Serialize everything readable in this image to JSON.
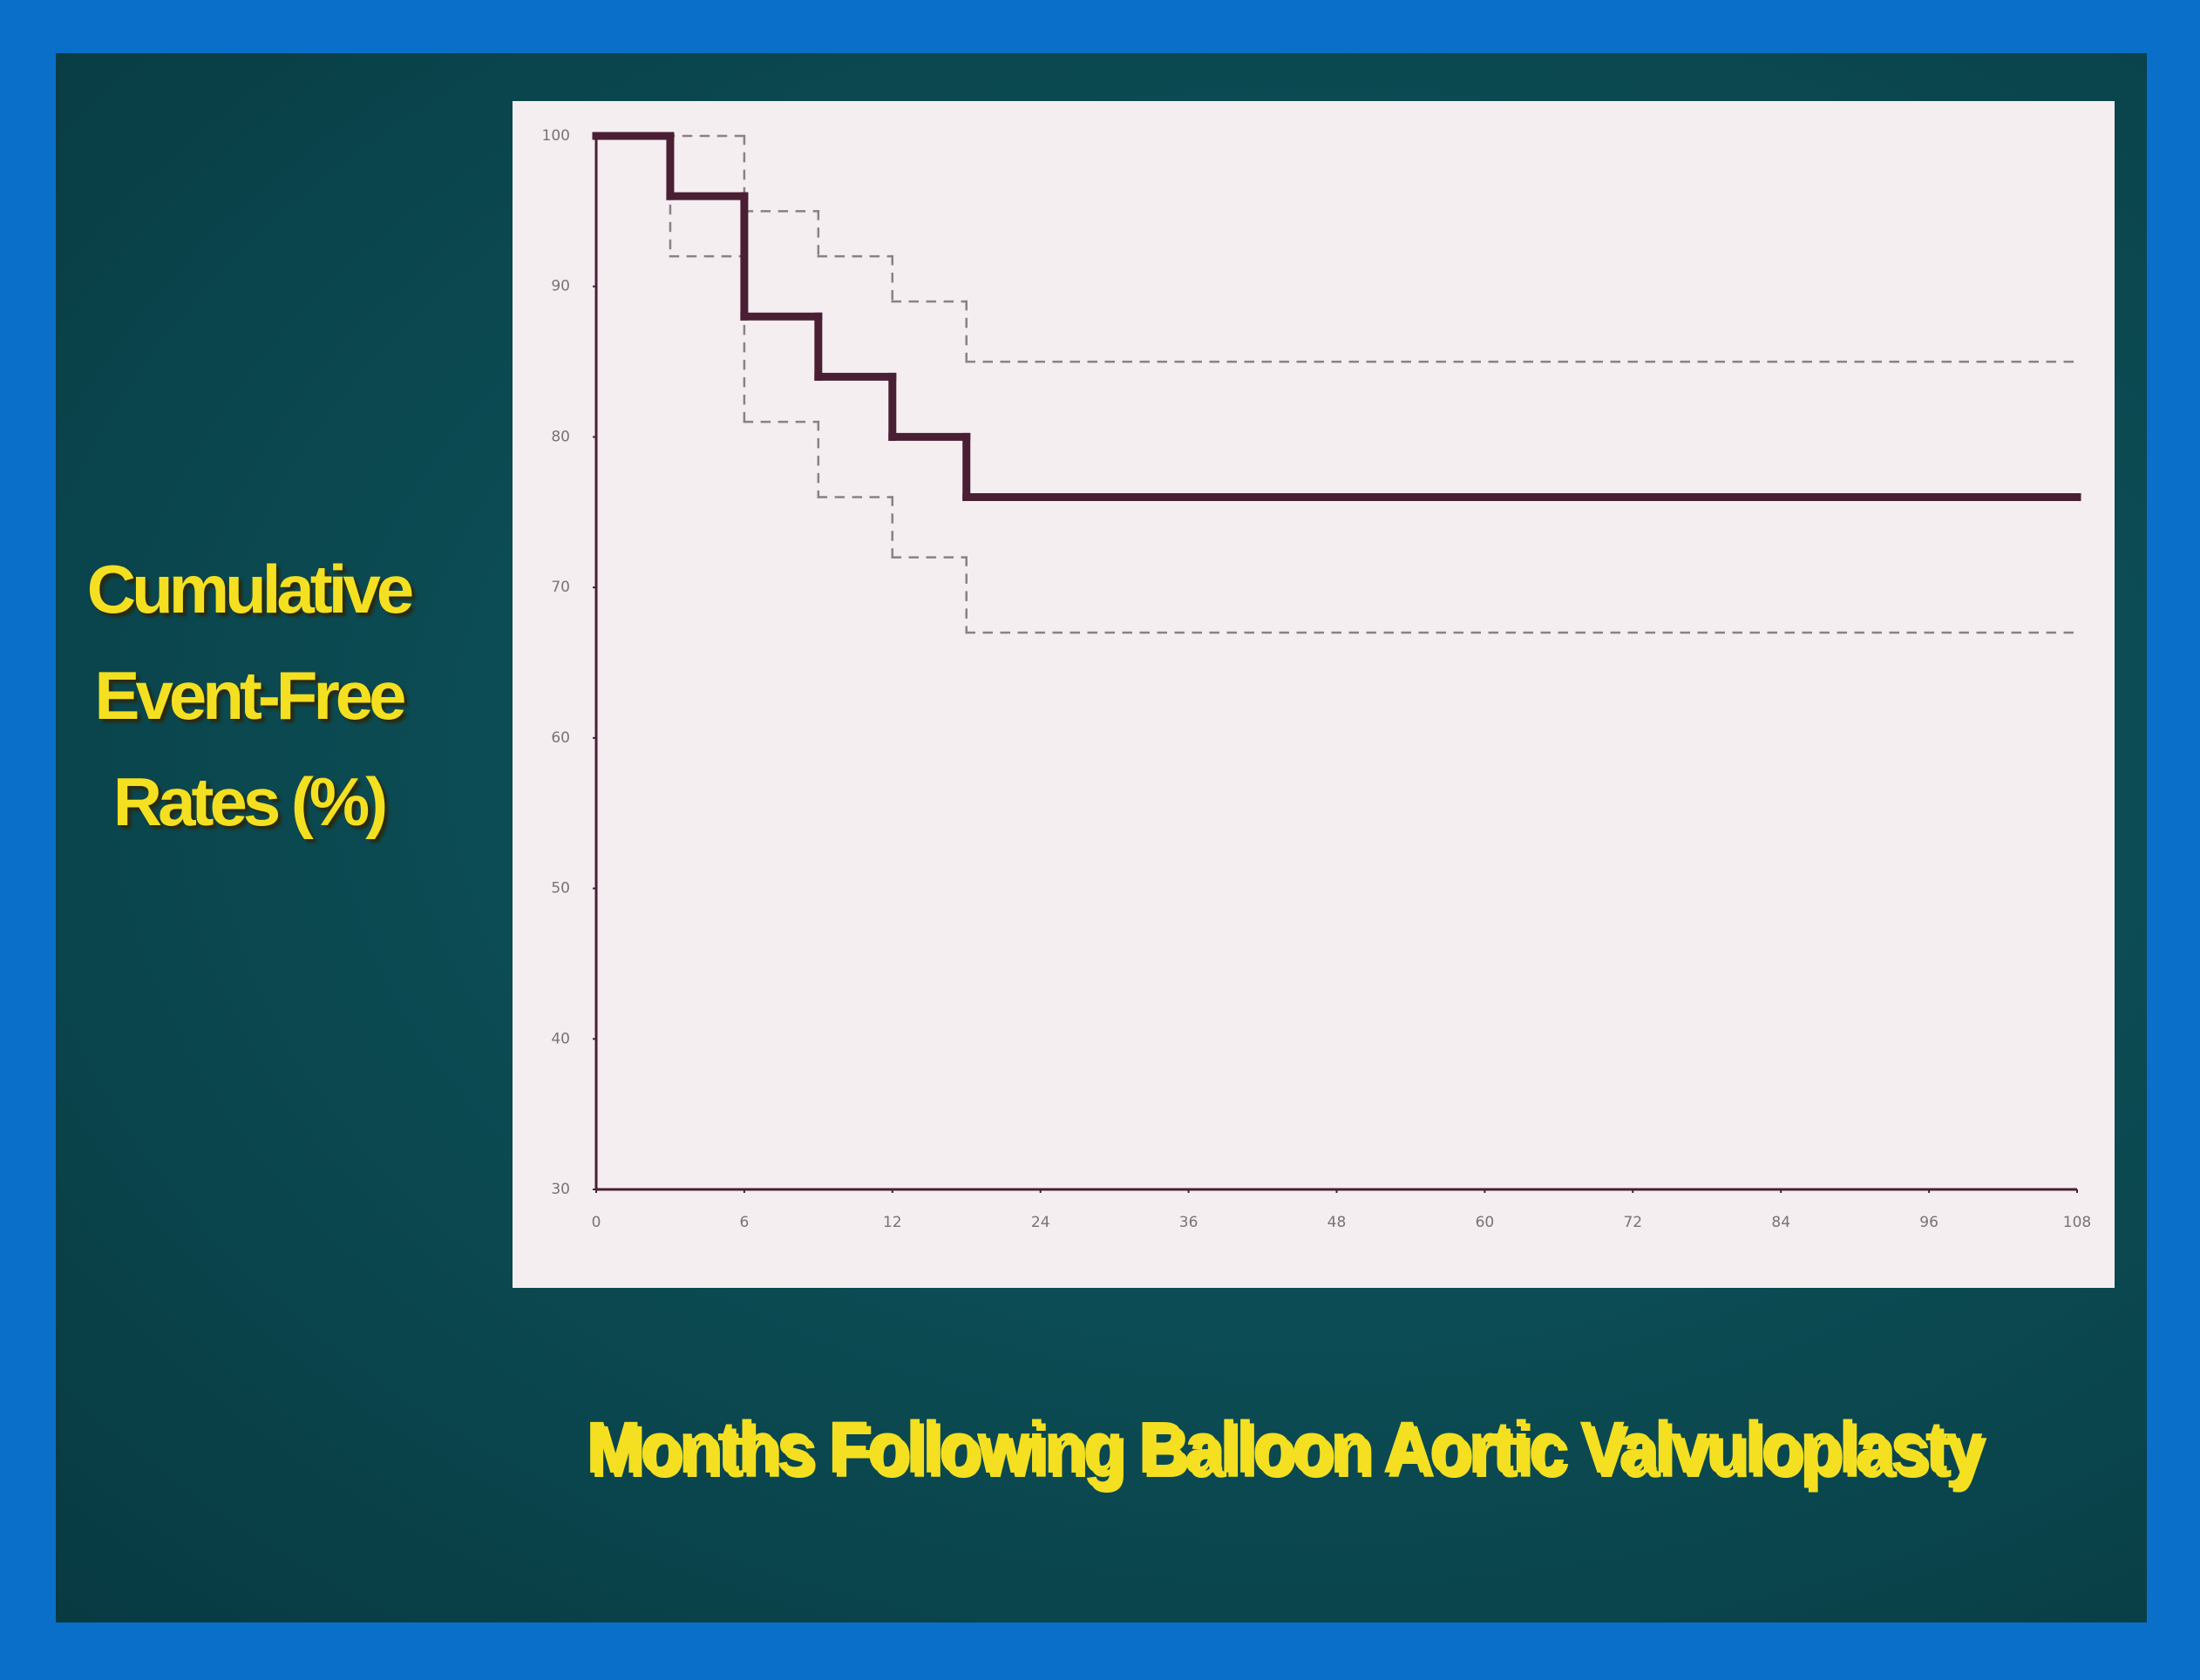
{
  "chart_data": {
    "type": "step",
    "ylabel": "Cumulative Event-Free Rates (%)",
    "xlabel": "Months Following Balloon Aortic Valvuloplasty",
    "xlim": [
      0,
      108
    ],
    "xticks": [
      0,
      6,
      12,
      24,
      36,
      48,
      60,
      72,
      84,
      96,
      108
    ],
    "ylim": [
      30,
      100
    ],
    "yticks": [
      30,
      40,
      50,
      60,
      70,
      80,
      90,
      100
    ],
    "series": [
      {
        "color": "#4a1f33",
        "linestyle": "solid",
        "x": [
          0,
          3,
          6,
          9,
          12,
          18,
          108
        ],
        "values": [
          100,
          96,
          88,
          84,
          80,
          76,
          76
        ]
      },
      {
        "color": "#8c8084",
        "linestyle": "dashed",
        "x": [
          0,
          6,
          9,
          12,
          18,
          108
        ],
        "values": [
          100,
          95,
          92,
          89,
          85,
          85
        ]
      },
      {
        "color": "#8c8084",
        "linestyle": "dashed",
        "x": [
          0,
          3,
          6,
          9,
          12,
          18,
          108
        ],
        "values": [
          100,
          92,
          81,
          76,
          72,
          67,
          67
        ]
      }
    ]
  }
}
